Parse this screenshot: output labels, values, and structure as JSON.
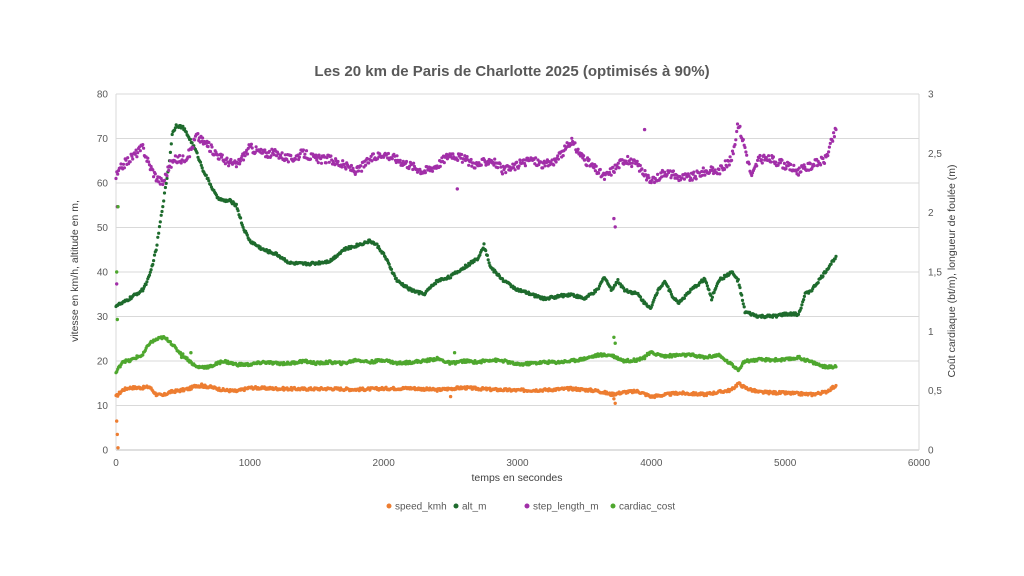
{
  "chart_data": {
    "type": "scatter",
    "title": "Les 20 km de Paris de Charlotte 2025 (optimisés à 90%)",
    "xlabel": "temps en secondes",
    "ylabel_left": "vitesse en km/h, altitude en m,",
    "ylabel_right": "Coût cardiaque (bt/m), longueur de foulée (m)",
    "xlim": [
      0,
      6000
    ],
    "ylim_left": [
      0,
      80
    ],
    "ylim_right": [
      0,
      3
    ],
    "x_ticks": [
      "0",
      "1000",
      "2000",
      "3000",
      "4000",
      "5000",
      "6000"
    ],
    "y_left_ticks": [
      "0",
      "10",
      "20",
      "30",
      "40",
      "50",
      "60",
      "70",
      "80"
    ],
    "y_right_ticks": [
      "0",
      "0,5",
      "1",
      "1,5",
      "2",
      "2,5",
      "3"
    ],
    "grid": "horizontal",
    "legend_position": "bottom",
    "series": [
      {
        "name": "speed_kmh",
        "axis": "left",
        "color": "#ED7D31",
        "points": [
          [
            0,
            12
          ],
          [
            50,
            13.5
          ],
          [
            100,
            14
          ],
          [
            200,
            14
          ],
          [
            250,
            14.2
          ],
          [
            300,
            12.5
          ],
          [
            350,
            12.2
          ],
          [
            400,
            13
          ],
          [
            500,
            13.5
          ],
          [
            550,
            13.8
          ],
          [
            600,
            14.5
          ],
          [
            700,
            14.2
          ],
          [
            800,
            13.5
          ],
          [
            900,
            13.2
          ],
          [
            1000,
            14
          ],
          [
            1200,
            13.8
          ],
          [
            1400,
            13.7
          ],
          [
            1600,
            13.8
          ],
          [
            1800,
            13.6
          ],
          [
            2000,
            13.8
          ],
          [
            2200,
            13.9
          ],
          [
            2400,
            13.5
          ],
          [
            2500,
            13.8
          ],
          [
            2600,
            14
          ],
          [
            2800,
            13.6
          ],
          [
            3000,
            13.4
          ],
          [
            3200,
            13.5
          ],
          [
            3400,
            13.8
          ],
          [
            3600,
            13.3
          ],
          [
            3700,
            12.5
          ],
          [
            3800,
            13
          ],
          [
            3900,
            13.2
          ],
          [
            4000,
            12
          ],
          [
            4200,
            12.8
          ],
          [
            4400,
            12.5
          ],
          [
            4600,
            13.5
          ],
          [
            4650,
            15
          ],
          [
            4700,
            14
          ],
          [
            4800,
            13
          ],
          [
            5000,
            12.8
          ],
          [
            5200,
            12.5
          ],
          [
            5300,
            13
          ],
          [
            5380,
            14.5
          ]
        ],
        "outliers": [
          [
            5,
            6.5
          ],
          [
            10,
            3.5
          ],
          [
            15,
            0.5
          ],
          [
            640,
            14.8
          ],
          [
            2500,
            12
          ],
          [
            3720,
            11.5
          ],
          [
            3730,
            10.5
          ]
        ]
      },
      {
        "name": "alt_m",
        "axis": "left",
        "color": "#1E6B2D",
        "points": [
          [
            0,
            32.5
          ],
          [
            50,
            33
          ],
          [
            100,
            34
          ],
          [
            150,
            35
          ],
          [
            200,
            36
          ],
          [
            250,
            39
          ],
          [
            300,
            45
          ],
          [
            350,
            55
          ],
          [
            400,
            65
          ],
          [
            420,
            71
          ],
          [
            450,
            73
          ],
          [
            500,
            72.5
          ],
          [
            550,
            70
          ],
          [
            600,
            67
          ],
          [
            650,
            63
          ],
          [
            700,
            60
          ],
          [
            750,
            57
          ],
          [
            800,
            56
          ],
          [
            850,
            56
          ],
          [
            900,
            55
          ],
          [
            950,
            50
          ],
          [
            1000,
            47
          ],
          [
            1100,
            45
          ],
          [
            1200,
            44
          ],
          [
            1300,
            42
          ],
          [
            1400,
            41.8
          ],
          [
            1500,
            42
          ],
          [
            1600,
            42.5
          ],
          [
            1700,
            45
          ],
          [
            1800,
            46
          ],
          [
            1900,
            47
          ],
          [
            1950,
            46
          ],
          [
            2000,
            44
          ],
          [
            2100,
            38
          ],
          [
            2200,
            36
          ],
          [
            2300,
            35
          ],
          [
            2400,
            38
          ],
          [
            2500,
            39
          ],
          [
            2600,
            41
          ],
          [
            2700,
            43
          ],
          [
            2750,
            46
          ],
          [
            2800,
            41
          ],
          [
            2900,
            38
          ],
          [
            3000,
            36
          ],
          [
            3100,
            35
          ],
          [
            3200,
            34
          ],
          [
            3300,
            34.5
          ],
          [
            3400,
            35
          ],
          [
            3500,
            34
          ],
          [
            3600,
            36
          ],
          [
            3650,
            39
          ],
          [
            3700,
            36
          ],
          [
            3750,
            38
          ],
          [
            3800,
            36
          ],
          [
            3900,
            35
          ],
          [
            3950,
            33
          ],
          [
            4000,
            32
          ],
          [
            4050,
            36
          ],
          [
            4100,
            38
          ],
          [
            4150,
            35
          ],
          [
            4200,
            33
          ],
          [
            4300,
            36
          ],
          [
            4400,
            38.5
          ],
          [
            4450,
            34
          ],
          [
            4500,
            38
          ],
          [
            4600,
            40
          ],
          [
            4650,
            38
          ],
          [
            4700,
            31
          ],
          [
            4800,
            30
          ],
          [
            4900,
            30
          ],
          [
            5000,
            30.5
          ],
          [
            5100,
            30.5
          ],
          [
            5150,
            35
          ],
          [
            5200,
            36
          ],
          [
            5300,
            40
          ],
          [
            5380,
            43.5
          ]
        ]
      },
      {
        "name": "step_length_m",
        "axis": "right",
        "color": "#A12FA8",
        "points": [
          [
            0,
            2.3
          ],
          [
            50,
            2.4
          ],
          [
            100,
            2.45
          ],
          [
            150,
            2.5
          ],
          [
            200,
            2.55
          ],
          [
            250,
            2.4
          ],
          [
            300,
            2.3
          ],
          [
            350,
            2.25
          ],
          [
            400,
            2.4
          ],
          [
            450,
            2.45
          ],
          [
            500,
            2.45
          ],
          [
            550,
            2.5
          ],
          [
            600,
            2.65
          ],
          [
            700,
            2.55
          ],
          [
            800,
            2.45
          ],
          [
            900,
            2.4
          ],
          [
            1000,
            2.55
          ],
          [
            1100,
            2.5
          ],
          [
            1200,
            2.5
          ],
          [
            1300,
            2.45
          ],
          [
            1400,
            2.5
          ],
          [
            1500,
            2.45
          ],
          [
            1600,
            2.45
          ],
          [
            1700,
            2.4
          ],
          [
            1800,
            2.35
          ],
          [
            1900,
            2.45
          ],
          [
            2000,
            2.5
          ],
          [
            2100,
            2.45
          ],
          [
            2200,
            2.4
          ],
          [
            2300,
            2.35
          ],
          [
            2400,
            2.4
          ],
          [
            2500,
            2.5
          ],
          [
            2600,
            2.45
          ],
          [
            2700,
            2.4
          ],
          [
            2800,
            2.45
          ],
          [
            2900,
            2.35
          ],
          [
            3000,
            2.4
          ],
          [
            3100,
            2.45
          ],
          [
            3200,
            2.4
          ],
          [
            3300,
            2.45
          ],
          [
            3400,
            2.6
          ],
          [
            3500,
            2.45
          ],
          [
            3600,
            2.35
          ],
          [
            3650,
            2.3
          ],
          [
            3700,
            2.35
          ],
          [
            3800,
            2.45
          ],
          [
            3900,
            2.4
          ],
          [
            4000,
            2.25
          ],
          [
            4100,
            2.35
          ],
          [
            4200,
            2.3
          ],
          [
            4300,
            2.3
          ],
          [
            4400,
            2.35
          ],
          [
            4500,
            2.35
          ],
          [
            4600,
            2.45
          ],
          [
            4650,
            2.75
          ],
          [
            4700,
            2.55
          ],
          [
            4750,
            2.3
          ],
          [
            4800,
            2.45
          ],
          [
            4900,
            2.45
          ],
          [
            5000,
            2.4
          ],
          [
            5100,
            2.35
          ],
          [
            5200,
            2.4
          ],
          [
            5300,
            2.45
          ],
          [
            5380,
            2.7
          ]
        ],
        "outliers": [
          [
            5,
            1.4
          ],
          [
            10,
            2.05
          ],
          [
            680,
            2.6
          ],
          [
            2550,
            2.2
          ],
          [
            3720,
            1.95
          ],
          [
            3730,
            1.88
          ],
          [
            3950,
            2.7
          ]
        ]
      },
      {
        "name": "cardiac_cost",
        "axis": "right",
        "color": "#4EA72E",
        "points": [
          [
            0,
            0.65
          ],
          [
            50,
            0.75
          ],
          [
            100,
            0.75
          ],
          [
            150,
            0.78
          ],
          [
            200,
            0.8
          ],
          [
            250,
            0.9
          ],
          [
            300,
            0.93
          ],
          [
            350,
            0.95
          ],
          [
            400,
            0.92
          ],
          [
            450,
            0.85
          ],
          [
            500,
            0.8
          ],
          [
            550,
            0.75
          ],
          [
            600,
            0.7
          ],
          [
            700,
            0.7
          ],
          [
            800,
            0.75
          ],
          [
            900,
            0.72
          ],
          [
            1000,
            0.72
          ],
          [
            1100,
            0.74
          ],
          [
            1200,
            0.73
          ],
          [
            1300,
            0.73
          ],
          [
            1400,
            0.75
          ],
          [
            1500,
            0.73
          ],
          [
            1600,
            0.74
          ],
          [
            1700,
            0.73
          ],
          [
            1800,
            0.76
          ],
          [
            1900,
            0.74
          ],
          [
            2000,
            0.76
          ],
          [
            2100,
            0.73
          ],
          [
            2200,
            0.74
          ],
          [
            2300,
            0.75
          ],
          [
            2400,
            0.77
          ],
          [
            2500,
            0.73
          ],
          [
            2600,
            0.75
          ],
          [
            2700,
            0.74
          ],
          [
            2800,
            0.76
          ],
          [
            2900,
            0.75
          ],
          [
            3000,
            0.72
          ],
          [
            3100,
            0.73
          ],
          [
            3200,
            0.74
          ],
          [
            3300,
            0.74
          ],
          [
            3400,
            0.75
          ],
          [
            3500,
            0.77
          ],
          [
            3600,
            0.8
          ],
          [
            3700,
            0.8
          ],
          [
            3800,
            0.75
          ],
          [
            3900,
            0.76
          ],
          [
            4000,
            0.82
          ],
          [
            4100,
            0.79
          ],
          [
            4200,
            0.8
          ],
          [
            4300,
            0.8
          ],
          [
            4400,
            0.78
          ],
          [
            4500,
            0.8
          ],
          [
            4600,
            0.72
          ],
          [
            4650,
            0.68
          ],
          [
            4700,
            0.75
          ],
          [
            4800,
            0.76
          ],
          [
            4900,
            0.76
          ],
          [
            5000,
            0.76
          ],
          [
            5100,
            0.78
          ],
          [
            5200,
            0.74
          ],
          [
            5300,
            0.7
          ],
          [
            5380,
            0.7
          ]
        ],
        "outliers": [
          [
            5,
            1.5
          ],
          [
            10,
            1.1
          ],
          [
            15,
            2.05
          ],
          [
            490,
            0.78
          ],
          [
            560,
            0.82
          ],
          [
            2530,
            0.82
          ],
          [
            3720,
            0.95
          ],
          [
            3730,
            0.9
          ],
          [
            3950,
            0.77
          ]
        ]
      }
    ]
  }
}
